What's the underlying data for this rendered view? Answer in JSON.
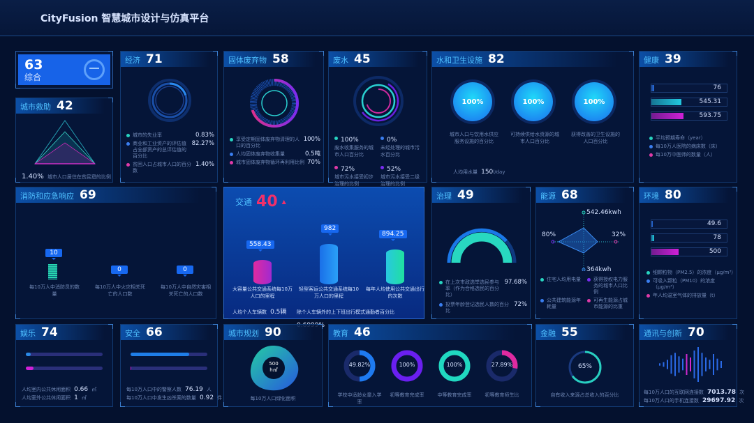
{
  "header": {
    "title": "CityFusion 智慧城市设计与仿真平台"
  },
  "overall": {
    "score": "63",
    "label": "综合",
    "icon": "city-network-icon"
  },
  "rescue": {
    "label": "城市救助",
    "score": "42",
    "value": "1.40%",
    "desc": "城市人口居住在贫民窟的比例"
  },
  "economy": {
    "label": "经济",
    "score": "71",
    "ring": [
      0.83,
      82.27,
      1.4
    ],
    "items": [
      {
        "text": "城市的失业率",
        "value": "0.83%",
        "color": "#28d4c0"
      },
      {
        "text": "商业和工业资产的评估值占全部资产的总评估值的百分比",
        "value": "82.27%",
        "color": "#3a7ef0"
      },
      {
        "text": "贫困人口占城市人口的百分数",
        "value": "1.40%",
        "color": "#e03aa8"
      }
    ]
  },
  "solid_waste": {
    "label": "固体废弃物",
    "score": "58",
    "items": [
      {
        "text": "享受定期固体废弃物清理的人口的百分比",
        "value": "100%",
        "color": "#28d4c0"
      },
      {
        "text": "人均固体废弃物收集量",
        "value": "0.5吨",
        "color": "#3a7ef0"
      },
      {
        "text": "城市固体废弃物循环再利用比例",
        "value": "70%",
        "color": "#e03aa8"
      }
    ]
  },
  "wastewater": {
    "label": "废水",
    "score": "45",
    "items": [
      {
        "value": "100%",
        "text": "废水收集服务的城市人口百分比",
        "color": "#28d4c0"
      },
      {
        "value": "0%",
        "text": "未经处理的城市污水百分比",
        "color": "#3a7ef0"
      },
      {
        "value": "72%",
        "text": "城市污水接受初步治理的比例",
        "color": "#e03aa8"
      },
      {
        "value": "52%",
        "text": "城市污水接受二级治理的比例",
        "color": "#7a2cf0"
      }
    ]
  },
  "water": {
    "label": "水和卫生设施",
    "score": "82",
    "gauges": [
      {
        "value": "100%",
        "text": "城市人口与饮用水供应服务设施的百分比"
      },
      {
        "value": "可持续供给水资源的城市人口百分比",
        "text": "可持续供给水资源的城市人口百分比",
        "v": "100%"
      },
      {
        "value": "100%",
        "text": "获得改善的卫生设施的人口百分比"
      }
    ],
    "usage_label": "人均用水量",
    "usage_value": "150",
    "usage_unit": "l/day"
  },
  "health": {
    "label": "健康",
    "score": "39",
    "bars": [
      {
        "value": "76",
        "fill_pct": 4,
        "color": "#2a6fe0"
      },
      {
        "value": "545.31",
        "fill_pct": 40,
        "color": "#22c8e0"
      },
      {
        "value": "593.75",
        "fill_pct": 43,
        "color": "#d020d8"
      }
    ],
    "legend": [
      {
        "text": "平均预期寿命（year）",
        "color": "#28d4c0"
      },
      {
        "text": "每10万人医院的病床数（床）",
        "color": "#3a7ef0"
      },
      {
        "text": "每10万中医师的数量（人）",
        "color": "#e03aa8"
      }
    ]
  },
  "fire": {
    "label": "消防和应急响应",
    "score": "69",
    "items": [
      {
        "value": "10",
        "text": "每10万人中消防员的数量"
      },
      {
        "value": "0",
        "text": "每10万人中火灾相关死亡的人口数"
      },
      {
        "value": "0",
        "text": "每10万人中自然灾害相关死亡的人口数"
      }
    ]
  },
  "transport": {
    "label": "交通",
    "score": "40",
    "trend": "up-arrow-icon",
    "items": [
      {
        "value": "558.43",
        "text": "大容量公共交通系统每10万人口的里程"
      },
      {
        "value": "982",
        "text": "轻型客运公共交通系统每10万人口的里程"
      },
      {
        "value": "894.25",
        "text": "每年人均使用公共交通出行的次数"
      }
    ],
    "car_label": "人均个人车辆数",
    "car_value": "0.5辆",
    "alt_label": "除个人车辆外的上下班出行模式通勤者百分比",
    "alt_value": "0.6999%"
  },
  "governance": {
    "label": "治理",
    "score": "49",
    "gauge_pct": 97.68,
    "items": [
      {
        "text": "在上次市政选举选民参与率（作为合格选民的百分比）",
        "value": "97.68%",
        "color": "#28d4c0"
      },
      {
        "text": "投票年龄登记选民人数的百分比",
        "value": "72%",
        "color": "#3a7ef0"
      }
    ]
  },
  "energy": {
    "label": "能源",
    "score": "68",
    "radar": {
      "top": "542.46kwh",
      "bottom": "364kwh",
      "left": "80%",
      "right": "32%"
    },
    "legend": [
      {
        "text": "住宅人均用电量",
        "color": "#28d4c0"
      },
      {
        "text": "获得授权电力服务的城市人口比例",
        "color": "#7a2cf0"
      },
      {
        "text": "公共建筑能源年耗量",
        "color": "#3a7ef0"
      },
      {
        "text": "可再生能源占城市能源的比重",
        "color": "#e03aa8"
      }
    ]
  },
  "environment": {
    "label": "环境",
    "score": "80",
    "bars": [
      {
        "value": "49.6",
        "fill_pct": 2,
        "color": "#2a6fe0"
      },
      {
        "value": "78",
        "fill_pct": 4,
        "color": "#22c8e0"
      },
      {
        "value": "500",
        "fill_pct": 36,
        "color": "#d020d8"
      }
    ],
    "legend": [
      {
        "text": "细颗粒物（PM2.5）的浓度（μg/m³）",
        "color": "#28d4c0"
      },
      {
        "text": "可吸入颗粒（PM10）的浓度（μg/m³）",
        "color": "#3a7ef0"
      },
      {
        "text": "年人均温室气体的排放量（t）",
        "color": "#e03aa8"
      }
    ]
  },
  "recreation": {
    "label": "娱乐",
    "score": "74",
    "bars": [
      {
        "fill_pct": 6,
        "color": "#2a8ae8"
      },
      {
        "fill_pct": 10,
        "color": "#d020d8"
      }
    ],
    "items": [
      {
        "text": "人均室内公共休闲面积",
        "value": "0.66",
        "unit": "㎡"
      },
      {
        "text": "人均室外公共休闲面积",
        "value": "1",
        "unit": "㎡"
      }
    ]
  },
  "safety": {
    "label": "安全",
    "score": "66",
    "bars": [
      {
        "fill_pct": 76,
        "color": "#1f7ee8"
      },
      {
        "fill_pct": 1,
        "color": "#d020d8"
      }
    ],
    "items": [
      {
        "text": "每10万人口中的警察人数",
        "value": "76.19",
        "unit": "人"
      },
      {
        "text": "每10万人口中发生凶杀案的数量",
        "value": "0.92",
        "unit": "件"
      }
    ]
  },
  "planning": {
    "label": "城市规划",
    "score": "90",
    "value": "500",
    "unit": "h㎡",
    "text": "每10万人口绿化面积"
  },
  "education": {
    "label": "教育",
    "score": "46",
    "rings": [
      {
        "value": "49.82%",
        "pct": 49.82,
        "text": "学校中适龄女童入学率",
        "color": "#1e7af0"
      },
      {
        "value": "100%",
        "pct": 100,
        "text": "初等教育完成率",
        "color": "#6a1ff0"
      },
      {
        "value": "100%",
        "pct": 100,
        "text": "中等教育完成率",
        "color": "#20d8c0"
      },
      {
        "value": "27.89%",
        "pct": 27.89,
        "text": "初等教育师生比",
        "color": "#e02aa0"
      }
    ]
  },
  "finance": {
    "label": "金融",
    "score": "55",
    "value": "65%",
    "pct": 65,
    "text": "自有收入来源占总收入的百分比"
  },
  "telecom": {
    "label": "通讯与创新",
    "score": "70",
    "items": [
      {
        "text": "每10万人口的互联网连接数",
        "value": "7013.78",
        "unit": "次"
      },
      {
        "text": "每10万人口的手机连接数",
        "value": "29697.92",
        "unit": "次"
      }
    ]
  }
}
